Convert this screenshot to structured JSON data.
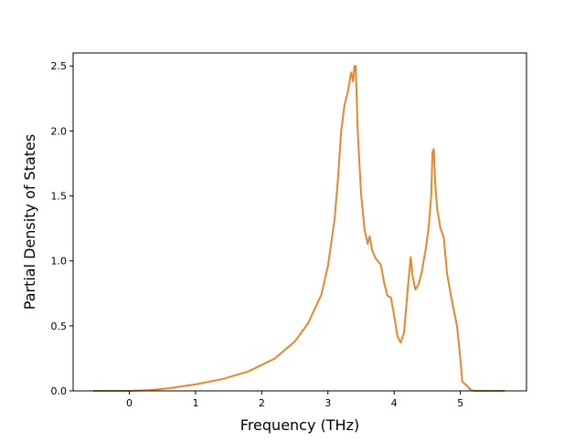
{
  "chart_data": {
    "type": "line",
    "title": "",
    "xlabel": "Frequency (THz)",
    "ylabel": "Partial Density of States",
    "xlim": [
      -0.85,
      6.0
    ],
    "ylim": [
      0.0,
      2.6
    ],
    "xticks": [
      0,
      1,
      2,
      3,
      4,
      5
    ],
    "yticks": [
      0.0,
      0.5,
      1.0,
      1.5,
      2.0,
      2.5
    ],
    "xtick_labels": [
      "0",
      "1",
      "2",
      "3",
      "4",
      "5"
    ],
    "ytick_labels": [
      "0.0",
      "0.5",
      "1.0",
      "1.5",
      "2.0",
      "2.5"
    ],
    "grid": false,
    "legend": "none",
    "series": [
      {
        "color": "#e6872e",
        "x": [
          -0.55,
          -0.3,
          0.0,
          0.3,
          0.6,
          1.0,
          1.4,
          1.8,
          2.2,
          2.5,
          2.7,
          2.9,
          3.0,
          3.1,
          3.15,
          3.2,
          3.25,
          3.3,
          3.35,
          3.38,
          3.4,
          3.42,
          3.45,
          3.5,
          3.55,
          3.6,
          3.63,
          3.67,
          3.72,
          3.8,
          3.85,
          3.9,
          3.95,
          4.0,
          4.05,
          4.1,
          4.15,
          4.2,
          4.25,
          4.28,
          4.32,
          4.37,
          4.42,
          4.48,
          4.52,
          4.56,
          4.58,
          4.6,
          4.62,
          4.65,
          4.7,
          4.75,
          4.8,
          4.87,
          4.95,
          5.0,
          5.03,
          5.1,
          5.15,
          5.2,
          5.5,
          5.67
        ],
        "y": [
          0.0,
          0.0,
          0.0,
          0.005,
          0.02,
          0.05,
          0.09,
          0.15,
          0.25,
          0.38,
          0.52,
          0.74,
          0.96,
          1.32,
          1.62,
          2.0,
          2.2,
          2.3,
          2.45,
          2.38,
          2.5,
          2.5,
          2.0,
          1.52,
          1.25,
          1.13,
          1.19,
          1.08,
          1.02,
          0.97,
          0.83,
          0.73,
          0.72,
          0.58,
          0.42,
          0.37,
          0.45,
          0.75,
          1.03,
          0.88,
          0.78,
          0.82,
          0.92,
          1.1,
          1.25,
          1.5,
          1.84,
          1.86,
          1.6,
          1.4,
          1.25,
          1.18,
          0.9,
          0.7,
          0.5,
          0.25,
          0.07,
          0.04,
          0.01,
          0.0,
          0.0,
          0.0
        ]
      }
    ]
  }
}
